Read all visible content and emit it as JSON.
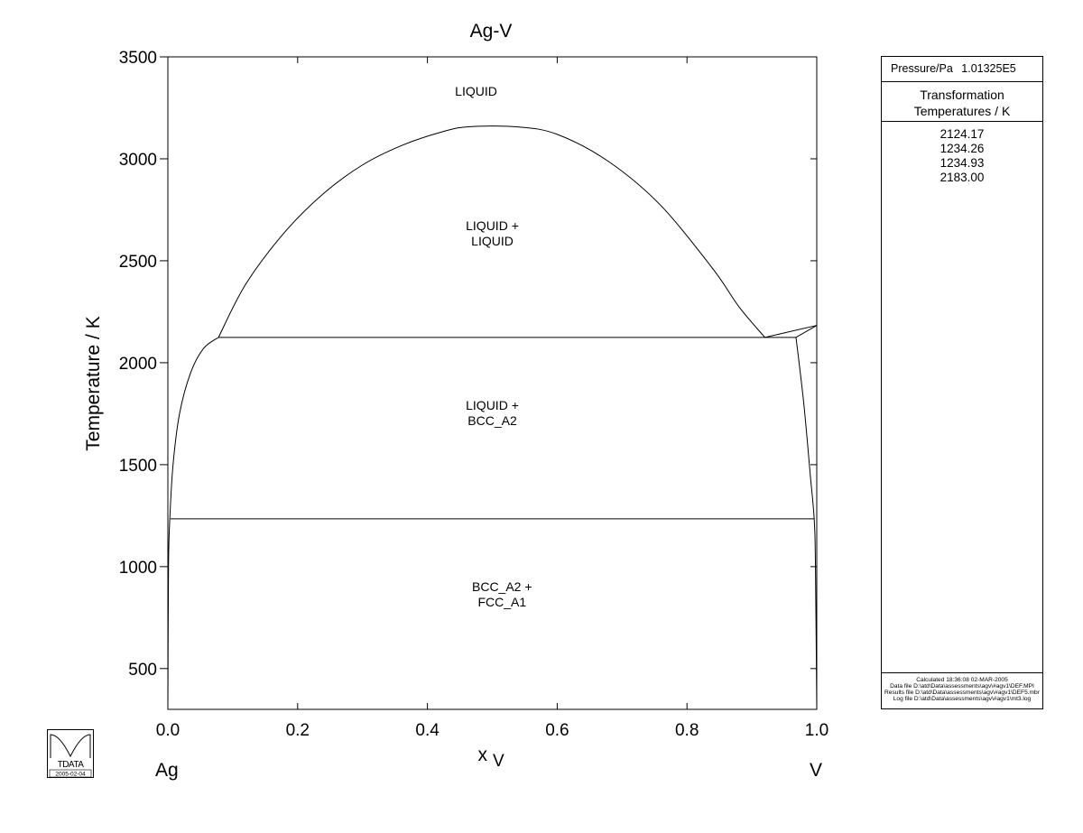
{
  "chart_data": {
    "type": "line",
    "title": "Ag-V",
    "xlabel": "x",
    "xlabel_sub": "V",
    "ylabel": "Temperature / K",
    "xlim": [
      0.0,
      1.0
    ],
    "ylim": [
      300,
      3500
    ],
    "x_ticks": [
      0.0,
      0.2,
      0.4,
      0.6,
      0.8,
      1.0
    ],
    "x_tick_labels": [
      "0.0",
      "0.2",
      "0.4",
      "0.6",
      "0.8",
      "1.0"
    ],
    "y_ticks": [
      500,
      1000,
      1500,
      2000,
      2500,
      3000,
      3500
    ],
    "y_tick_labels": [
      "500",
      "1000",
      "1500",
      "2000",
      "2500",
      "3000",
      "3500"
    ],
    "grid": false,
    "left_end_label": "Ag",
    "right_end_label": "V",
    "series": [
      {
        "x": [
          0.078,
          0.12,
          0.18,
          0.24,
          0.3,
          0.36,
          0.42,
          0.463,
          0.537,
          0.6,
          0.68,
          0.76,
          0.84,
          0.88,
          0.92
        ],
        "y": [
          2124.17,
          2385,
          2640,
          2830,
          2970,
          3065,
          3130,
          3157,
          3157,
          3120,
          2985,
          2770,
          2460,
          2275,
          2124.17
        ]
      },
      {
        "x": [
          0.0,
          0.001,
          0.003,
          0.008,
          0.018,
          0.035,
          0.055,
          0.078
        ],
        "y": [
          300,
          1000,
          1234.26,
          1500,
          1750,
          1950,
          2070,
          2124.17
        ]
      },
      {
        "x": [
          0.078,
          0.968
        ],
        "y": [
          2124.17,
          2124.17
        ]
      },
      {
        "x": [
          0.004,
          0.996
        ],
        "y": [
          1234.26,
          1234.26
        ]
      },
      {
        "x": [
          0.968,
          0.98,
          0.99,
          0.996,
          0.998,
          1.0
        ],
        "y": [
          2124.17,
          1800,
          1450,
          1234.26,
          1000,
          300
        ]
      },
      {
        "x": [
          0.92,
          1.0
        ],
        "y": [
          2124.17,
          2183.0
        ]
      },
      {
        "x": [
          0.968,
          1.0
        ],
        "y": [
          2124.17,
          2183.0
        ]
      }
    ],
    "region_labels": [
      {
        "lines": [
          "LIQUID"
        ],
        "x": 0.475,
        "y": 3310
      },
      {
        "lines": [
          "LIQUID +",
          "LIQUID"
        ],
        "x": 0.5,
        "y": 2650
      },
      {
        "lines": [
          "LIQUID +",
          "BCC_A2"
        ],
        "x": 0.5,
        "y": 1770
      },
      {
        "lines": [
          "BCC_A2 +",
          "FCC_A1"
        ],
        "x": 0.515,
        "y": 880
      }
    ]
  },
  "legend": {
    "pressure_label": "Pressure/Pa",
    "pressure_value": "1.01325E5",
    "heading_line1": "Transformation",
    "heading_line2": "Temperatures / K",
    "temperatures": [
      "2124.17",
      "1234.26",
      "1234.93",
      "2183.00"
    ],
    "footer": [
      "Calculated  18:36:08  02-MAR-2005",
      "Data file  D:\\atd\\Data\\assessments\\agv\\#agv1\\DEF.MPI",
      "Results file  D:\\atd\\Data\\assessments\\agv\\#agv1\\DEF5.mbr",
      "Log file  D:\\atd\\Data\\assessments\\agv\\#agv1\\mt3.log"
    ]
  },
  "logo": {
    "brand": "MTDATA",
    "date": "2005-02-04"
  }
}
